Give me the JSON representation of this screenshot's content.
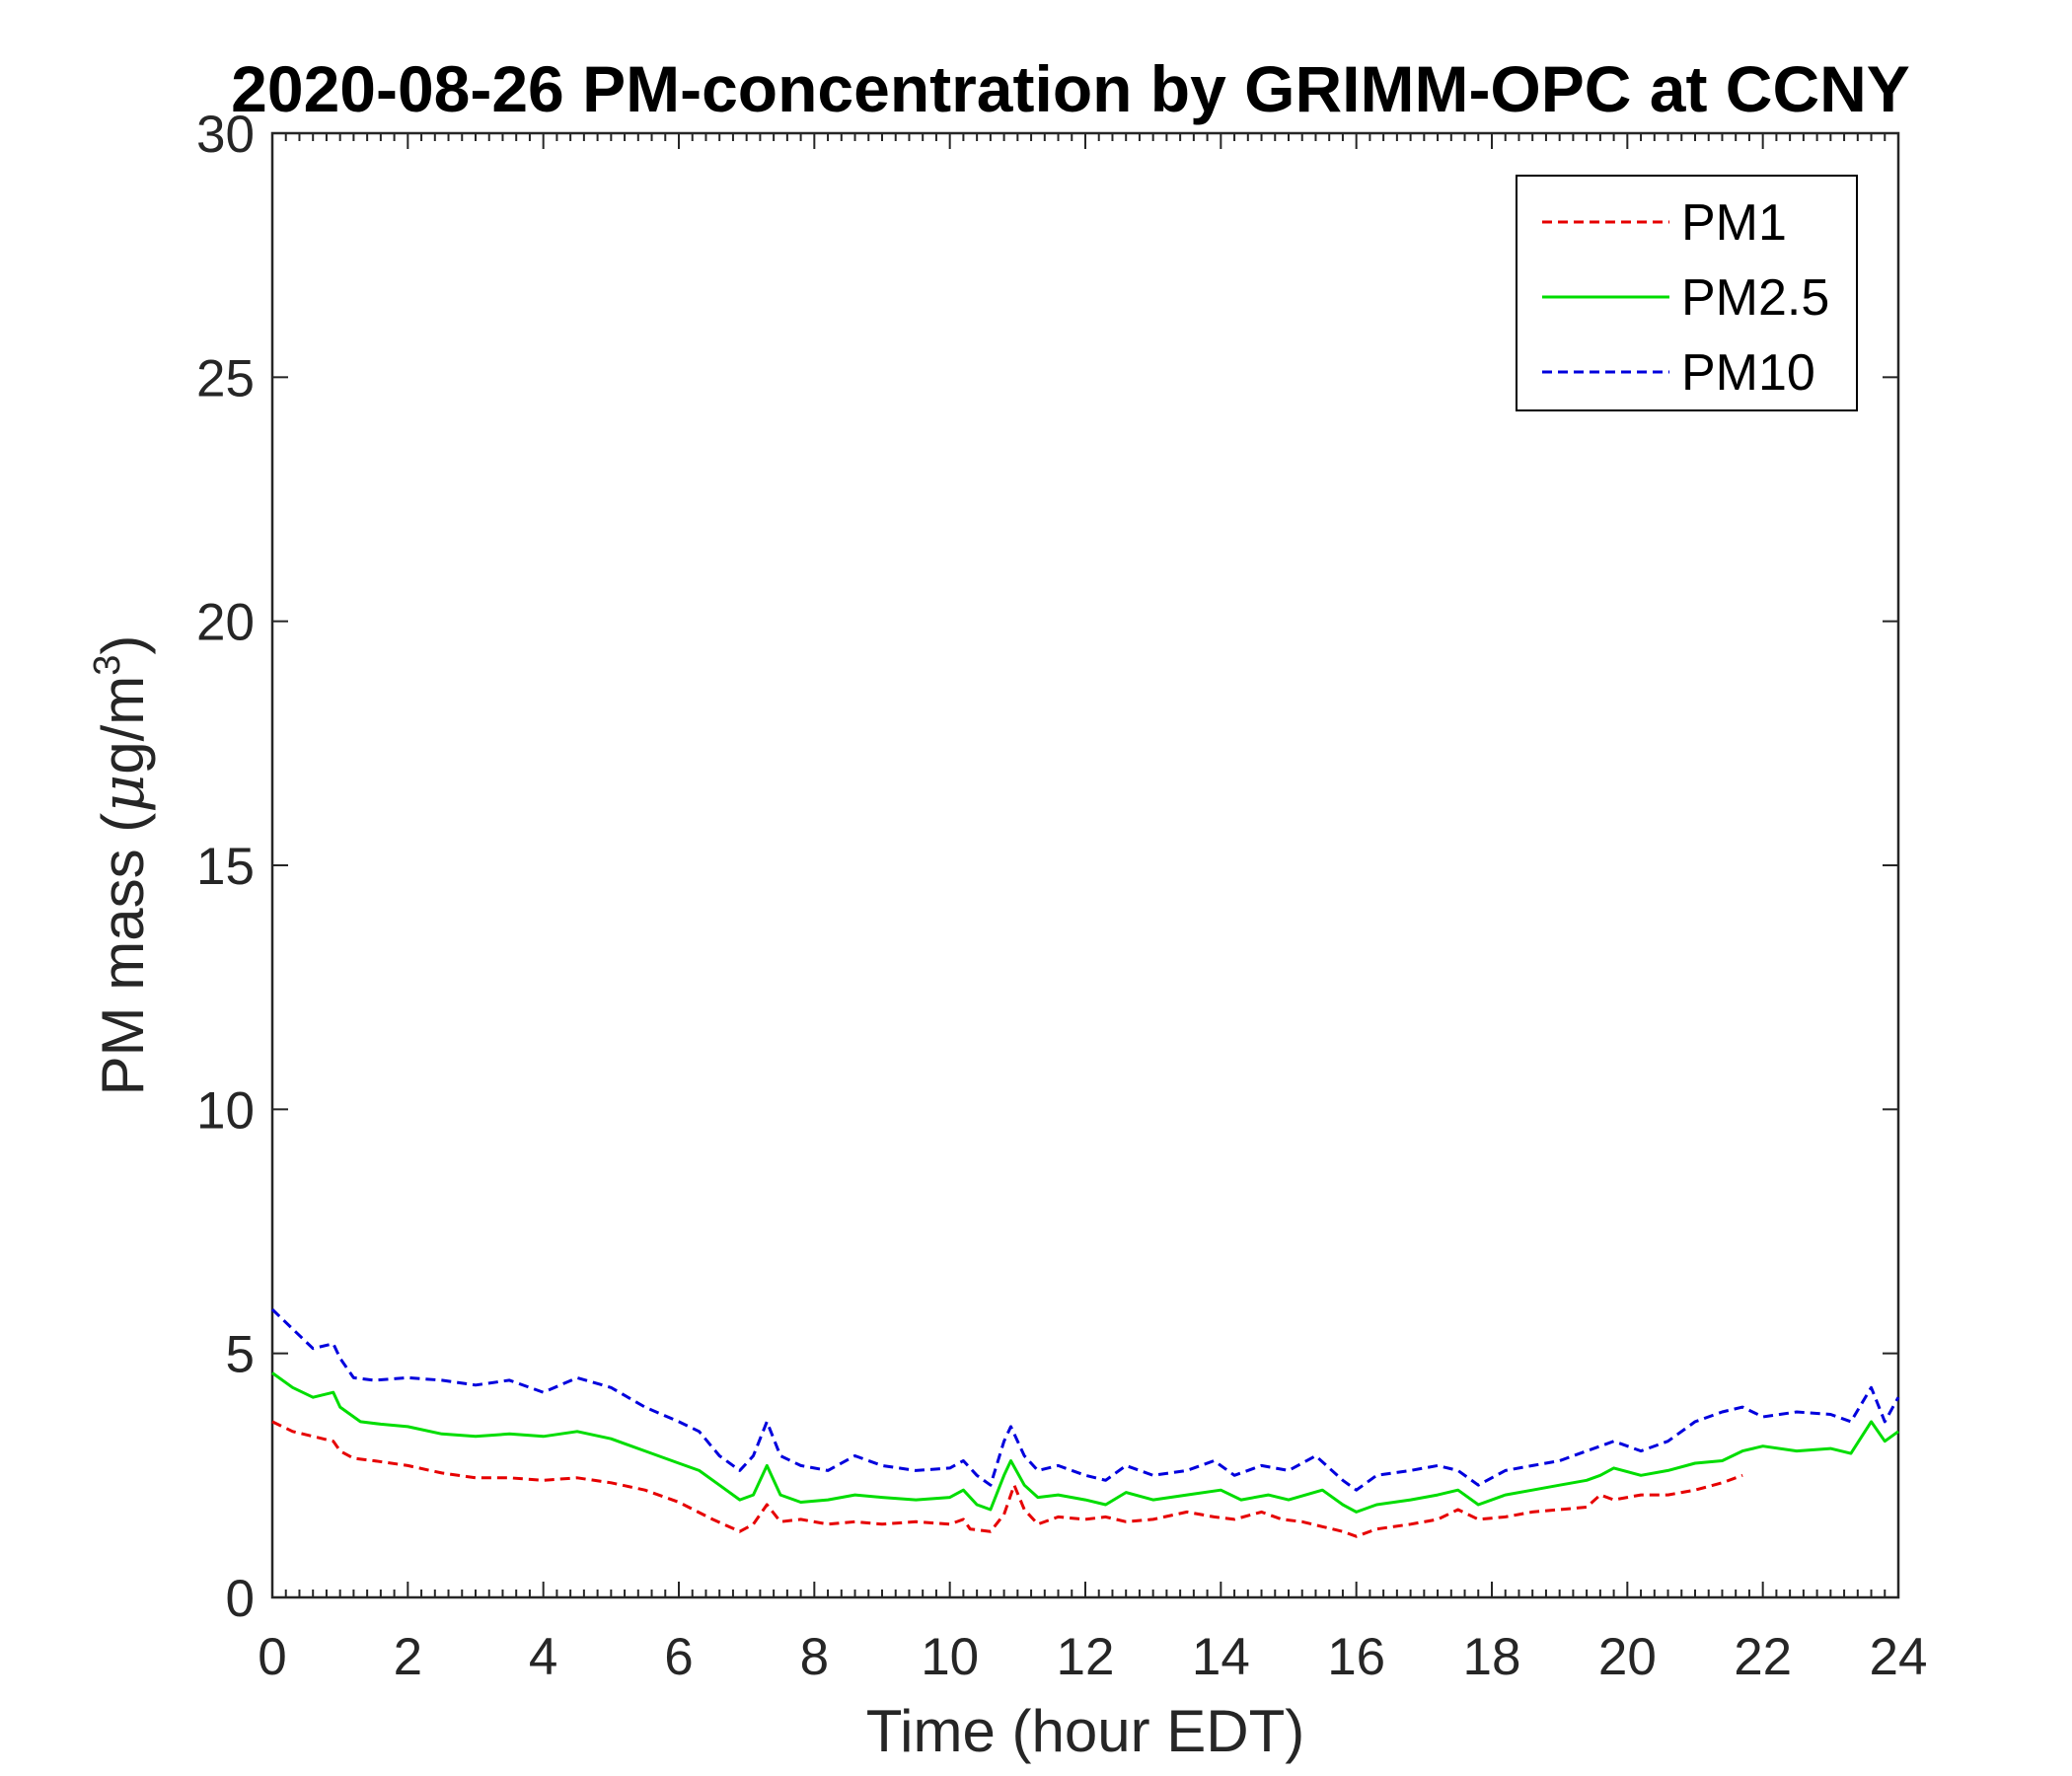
{
  "chart_data": {
    "type": "line",
    "title": "2020-08-26 PM-concentration by GRIMM-OPC at CCNY",
    "xlabel": "Time (hour EDT)",
    "ylabel": "PM mass (μg/m³)",
    "ylabel_parts": {
      "main": "PM mass (",
      "mu": "μ",
      "unit": "g/m",
      "sup": "3",
      "close": ")"
    },
    "xlim": [
      0,
      24
    ],
    "ylim": [
      0,
      30
    ],
    "xticks": [
      0,
      2,
      4,
      6,
      8,
      10,
      12,
      14,
      16,
      18,
      20,
      22,
      24
    ],
    "yticks": [
      0,
      5,
      10,
      15,
      20,
      25,
      30
    ],
    "grid": false,
    "legend_position": "top-right",
    "series": [
      {
        "name": "PM1",
        "color": "#e60000",
        "style": "dashed",
        "x": [
          0,
          0.3,
          0.6,
          0.9,
          1.0,
          1.2,
          1.5,
          2.0,
          2.5,
          3.0,
          3.5,
          4.0,
          4.5,
          5.0,
          5.5,
          6.0,
          6.5,
          6.9,
          7.1,
          7.3,
          7.5,
          7.8,
          8.2,
          8.6,
          9.0,
          9.5,
          10.0,
          10.2,
          10.3,
          10.6,
          10.8,
          10.95,
          11.1,
          11.3,
          11.6,
          12.0,
          12.3,
          12.6,
          13.0,
          13.5,
          13.9,
          14.2,
          14.6,
          14.9,
          15.2,
          15.5,
          15.8,
          16.0,
          16.3,
          16.8,
          17.2,
          17.5,
          17.8,
          18.2,
          18.6,
          19.0,
          19.4,
          19.6,
          19.8,
          20.2,
          20.6,
          21.0,
          21.4,
          21.7
        ],
        "y": [
          3.6,
          3.4,
          3.3,
          3.2,
          3.0,
          2.85,
          2.8,
          2.7,
          2.55,
          2.45,
          2.45,
          2.4,
          2.45,
          2.35,
          2.2,
          1.95,
          1.6,
          1.35,
          1.5,
          1.9,
          1.55,
          1.6,
          1.5,
          1.55,
          1.5,
          1.55,
          1.5,
          1.6,
          1.4,
          1.35,
          1.7,
          2.3,
          1.8,
          1.5,
          1.65,
          1.6,
          1.65,
          1.55,
          1.6,
          1.75,
          1.65,
          1.6,
          1.75,
          1.6,
          1.55,
          1.45,
          1.35,
          1.25,
          1.4,
          1.5,
          1.6,
          1.8,
          1.6,
          1.65,
          1.75,
          1.8,
          1.85,
          2.1,
          2.0,
          2.1,
          2.1,
          2.2,
          2.35,
          2.5
        ]
      },
      {
        "name": "PM2.5",
        "color": "#00dd00",
        "style": "solid",
        "x": [
          0,
          0.3,
          0.6,
          0.9,
          1.0,
          1.3,
          1.6,
          2.0,
          2.5,
          3.0,
          3.5,
          4.0,
          4.5,
          5.0,
          5.5,
          6.0,
          6.3,
          6.6,
          6.9,
          7.1,
          7.3,
          7.5,
          7.8,
          8.2,
          8.6,
          9.0,
          9.5,
          10.0,
          10.2,
          10.4,
          10.6,
          10.8,
          10.9,
          11.1,
          11.3,
          11.6,
          12.0,
          12.3,
          12.6,
          13.0,
          13.5,
          14.0,
          14.3,
          14.7,
          15.0,
          15.5,
          15.8,
          16.0,
          16.3,
          16.8,
          17.2,
          17.5,
          17.8,
          18.2,
          18.6,
          19.0,
          19.4,
          19.6,
          19.8,
          20.2,
          20.6,
          21.0,
          21.4,
          21.7,
          22.0,
          22.5,
          23.0,
          23.3,
          23.6,
          23.8,
          24.0
        ],
        "y": [
          4.6,
          4.3,
          4.1,
          4.2,
          3.9,
          3.6,
          3.55,
          3.5,
          3.35,
          3.3,
          3.35,
          3.3,
          3.4,
          3.25,
          3.0,
          2.75,
          2.6,
          2.3,
          2.0,
          2.1,
          2.7,
          2.1,
          1.95,
          2.0,
          2.1,
          2.05,
          2.0,
          2.05,
          2.2,
          1.9,
          1.8,
          2.5,
          2.8,
          2.3,
          2.05,
          2.1,
          2.0,
          1.9,
          2.15,
          2.0,
          2.1,
          2.2,
          2.0,
          2.1,
          2.0,
          2.2,
          1.9,
          1.75,
          1.9,
          2.0,
          2.1,
          2.2,
          1.9,
          2.1,
          2.2,
          2.3,
          2.4,
          2.5,
          2.65,
          2.5,
          2.6,
          2.75,
          2.8,
          3.0,
          3.1,
          3.0,
          3.05,
          2.95,
          3.6,
          3.2,
          3.4
        ]
      },
      {
        "name": "PM10",
        "color": "#0000dd",
        "style": "dashed",
        "x": [
          0,
          0.3,
          0.6,
          0.9,
          1.0,
          1.2,
          1.5,
          2.0,
          2.5,
          3.0,
          3.5,
          4.0,
          4.5,
          5.0,
          5.5,
          6.0,
          6.3,
          6.6,
          6.9,
          7.1,
          7.3,
          7.5,
          7.8,
          8.2,
          8.6,
          9.0,
          9.5,
          10.0,
          10.2,
          10.4,
          10.6,
          10.8,
          10.9,
          11.1,
          11.3,
          11.6,
          12.0,
          12.3,
          12.6,
          13.0,
          13.5,
          13.9,
          14.2,
          14.6,
          15.0,
          15.4,
          15.8,
          16.0,
          16.3,
          16.8,
          17.2,
          17.5,
          17.8,
          18.2,
          18.6,
          19.0,
          19.4,
          19.6,
          19.8,
          20.2,
          20.6,
          21.0,
          21.4,
          21.7,
          22.0,
          22.5,
          23.0,
          23.3,
          23.6,
          23.8,
          24.0
        ],
        "y": [
          5.9,
          5.5,
          5.1,
          5.2,
          4.9,
          4.5,
          4.45,
          4.5,
          4.45,
          4.35,
          4.45,
          4.2,
          4.5,
          4.3,
          3.9,
          3.6,
          3.4,
          2.9,
          2.6,
          2.9,
          3.6,
          2.9,
          2.7,
          2.6,
          2.9,
          2.7,
          2.6,
          2.65,
          2.8,
          2.5,
          2.3,
          3.2,
          3.5,
          2.9,
          2.6,
          2.7,
          2.5,
          2.4,
          2.7,
          2.5,
          2.6,
          2.8,
          2.5,
          2.7,
          2.6,
          2.9,
          2.4,
          2.2,
          2.5,
          2.6,
          2.7,
          2.6,
          2.3,
          2.6,
          2.7,
          2.8,
          3.0,
          3.1,
          3.2,
          3.0,
          3.2,
          3.6,
          3.8,
          3.9,
          3.7,
          3.8,
          3.75,
          3.6,
          4.3,
          3.6,
          4.1
        ]
      }
    ]
  }
}
